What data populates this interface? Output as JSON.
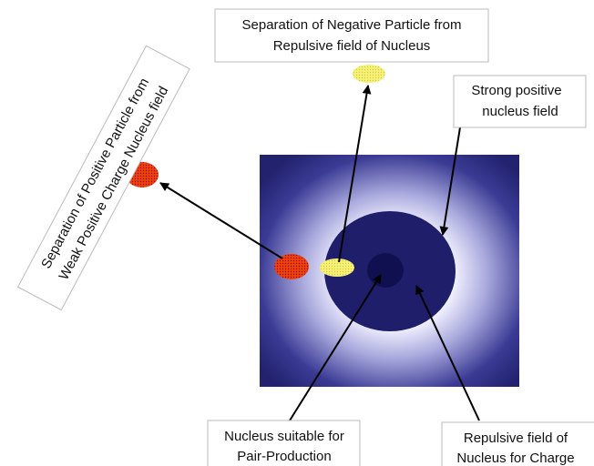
{
  "labels": [
    {
      "lines": [
        "Separation of Negative Particle from",
        "Repulsive field of Nucleus"
      ]
    },
    {
      "lines": [
        "Strong positive",
        "nucleus field"
      ]
    },
    {
      "lines": [
        "Separation of Positive Particle from",
        "Weak Positive Charge Nucleus field"
      ]
    },
    {
      "lines": [
        "Nucleus suitable for",
        "Pair-Production"
      ]
    },
    {
      "lines": [
        "Repulsive field of",
        "Nucleus for Charge"
      ]
    }
  ]
}
